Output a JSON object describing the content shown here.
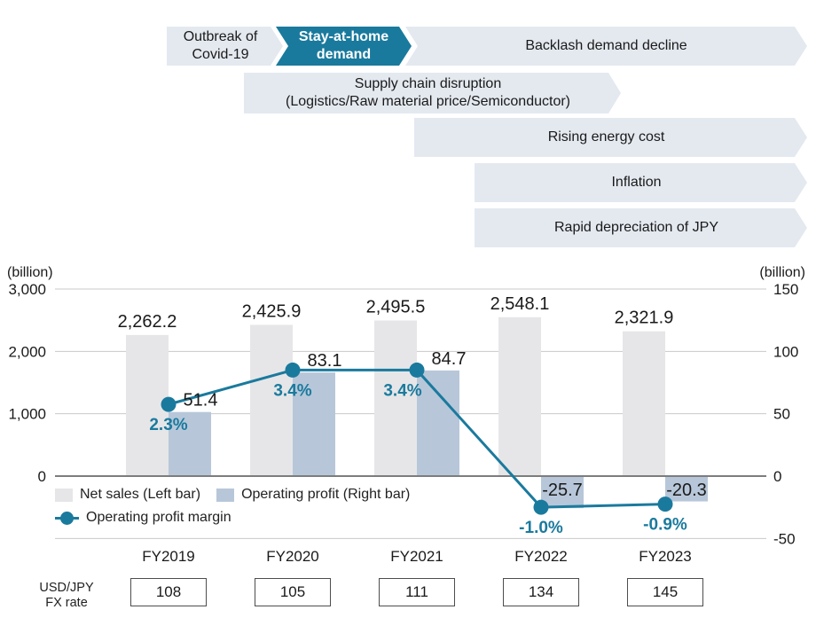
{
  "timeline": {
    "banners": [
      {
        "label": "Outbreak of Covid-19"
      },
      {
        "label": "Stay-at-home demand"
      },
      {
        "label": "Backlash demand decline"
      },
      {
        "line1": "Supply chain disruption",
        "line2": "(Logistics/Raw material price/Semiconductor)"
      },
      {
        "label": "Rising energy cost"
      },
      {
        "label": "Inflation"
      },
      {
        "label": "Rapid depreciation of JPY"
      }
    ]
  },
  "chart_data": {
    "type": "combo-bar-line",
    "categories": [
      "FY2019",
      "FY2020",
      "FY2021",
      "FY2022",
      "FY2023"
    ],
    "series": [
      {
        "name": "Net sales (Left bar)",
        "type": "bar",
        "axis": "left",
        "values": [
          2262.2,
          2425.9,
          2495.5,
          2548.1,
          2321.9
        ],
        "value_labels": [
          "2,262.2",
          "2,425.9",
          "2,495.5",
          "2,548.1",
          "2,321.9"
        ]
      },
      {
        "name": "Operating profit (Right bar)",
        "type": "bar",
        "axis": "right",
        "values": [
          51.4,
          83.1,
          84.7,
          -25.7,
          -20.3
        ],
        "value_labels": [
          "51.4",
          "83.1",
          "84.7",
          "-25.7",
          "-20.3"
        ]
      },
      {
        "name": "Operating profit margin",
        "type": "line",
        "axis": "percent",
        "values": [
          2.3,
          3.4,
          3.4,
          -1.0,
          -0.9
        ],
        "value_labels": [
          "2.3%",
          "3.4%",
          "3.4%",
          "-1.0%",
          "-0.9%"
        ]
      }
    ],
    "left_axis": {
      "title": "(billion)",
      "tick_labels": [
        "3,000",
        "2,000",
        "1,000",
        "0"
      ],
      "tick_values": [
        3000,
        2000,
        1000,
        0
      ],
      "range": [
        -1000,
        3000
      ]
    },
    "right_axis": {
      "title": "(billion)",
      "tick_labels": [
        "150",
        "100",
        "50",
        "0",
        "-50"
      ],
      "tick_values": [
        150,
        100,
        50,
        0,
        -50
      ],
      "range": [
        -50,
        150
      ]
    },
    "percent_plotted_at_right_axis_scale": 25,
    "grid": true,
    "legend_position": "inside-bottom-left"
  },
  "fx_table": {
    "row_label_line1": "USD/JPY",
    "row_label_line2": "FX rate",
    "rows": [
      {
        "year": "FY2019",
        "rate": "108"
      },
      {
        "year": "FY2020",
        "rate": "105"
      },
      {
        "year": "FY2021",
        "rate": "111"
      },
      {
        "year": "FY2022",
        "rate": "134"
      },
      {
        "year": "FY2023",
        "rate": "145"
      }
    ]
  },
  "colors": {
    "teal": "#1a7a9d",
    "banner_gray": "#e4e9f0",
    "net_sales_bar": "#e6e6e8",
    "operating_profit_bar": "#b7c7d9",
    "gridline": "#c9c9c9",
    "zero_line": "#7d7d7d",
    "text_dark": "#1a1a1a"
  }
}
